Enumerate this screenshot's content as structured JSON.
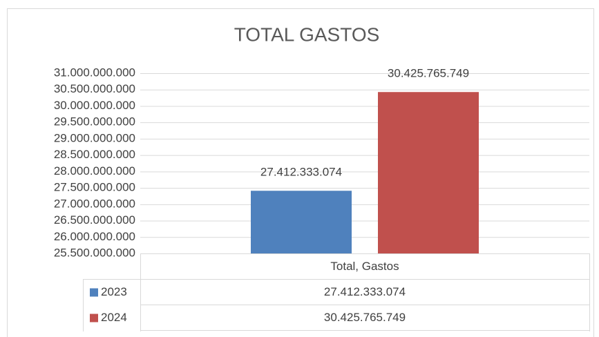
{
  "chart_data": {
    "type": "bar",
    "title": "TOTAL GASTOS",
    "categories": [
      "Total, Gastos"
    ],
    "series": [
      {
        "name": "2023",
        "color": "#4f81bd",
        "values": [
          27412333074
        ],
        "value_labels": [
          "27.412.333.074"
        ]
      },
      {
        "name": "2024",
        "color": "#c0504d",
        "values": [
          30425765749
        ],
        "value_labels": [
          "30.425.765.749"
        ]
      }
    ],
    "ylim": [
      25500000000,
      31000000000
    ],
    "yticks": [
      {
        "value": 25500000000,
        "label": "25.500.000.000"
      },
      {
        "value": 26000000000,
        "label": "26.000.000.000"
      },
      {
        "value": 26500000000,
        "label": "26.500.000.000"
      },
      {
        "value": 27000000000,
        "label": "27.000.000.000"
      },
      {
        "value": 27500000000,
        "label": "27.500.000.000"
      },
      {
        "value": 28000000000,
        "label": "28.000.000.000"
      },
      {
        "value": 28500000000,
        "label": "28.500.000.000"
      },
      {
        "value": 29000000000,
        "label": "29.000.000.000"
      },
      {
        "value": 29500000000,
        "label": "29.500.000.000"
      },
      {
        "value": 30000000000,
        "label": "30.000.000.000"
      },
      {
        "value": 30500000000,
        "label": "30.500.000.000"
      },
      {
        "value": 31000000000,
        "label": "31.000.000.000"
      }
    ],
    "grid": true
  }
}
